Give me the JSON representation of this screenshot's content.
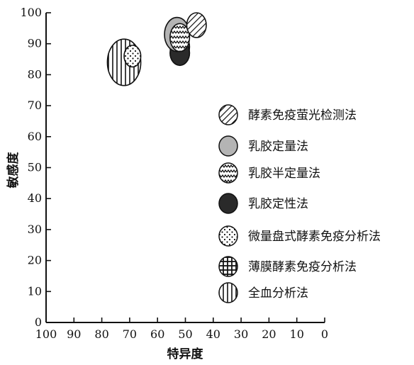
{
  "chart_data": {
    "type": "scatter",
    "xlabel": "特异度",
    "ylabel": "敏感度",
    "xlim": [
      100,
      0
    ],
    "ylim": [
      0,
      100
    ],
    "x_reversed": true,
    "xticks": [
      "100",
      "90",
      "80",
      "70",
      "60",
      "50",
      "40",
      "30",
      "20",
      "10",
      "0"
    ],
    "yticks": [
      "0",
      "10",
      "20",
      "30",
      "40",
      "50",
      "60",
      "70",
      "80",
      "90",
      "100"
    ],
    "grid": false,
    "legend_position": "right",
    "series": [
      {
        "name": "酵素免疫萤光检测法",
        "pattern": "diagonal-hatch",
        "x": 46,
        "y": 96,
        "rx": 3.5,
        "ry": 4
      },
      {
        "name": "乳胶定量法",
        "pattern": "solid-gray",
        "x": 53,
        "y": 93,
        "rx": 4.5,
        "ry": 5.5
      },
      {
        "name": "乳胶半定量法",
        "pattern": "zigzag",
        "x": 52,
        "y": 92,
        "rx": 3.5,
        "ry": 4.5
      },
      {
        "name": "乳胶定性法",
        "pattern": "solid-black",
        "x": 52,
        "y": 87,
        "rx": 3.5,
        "ry": 4
      },
      {
        "name": "微量盘式酵素免疫分析法",
        "pattern": "dots",
        "x": 69,
        "y": 86,
        "rx": 3,
        "ry": 3.5
      },
      {
        "name": "薄膜酵素免疫分析法",
        "pattern": "grid",
        "x": 52,
        "y": 89,
        "rx": 3.5,
        "ry": 4
      },
      {
        "name": "全血分析法",
        "pattern": "vertical-lines",
        "x": 72,
        "y": 84,
        "rx": 6,
        "ry": 7.5
      }
    ],
    "draw_order": [
      6,
      4,
      5,
      3,
      1,
      2,
      0
    ]
  }
}
